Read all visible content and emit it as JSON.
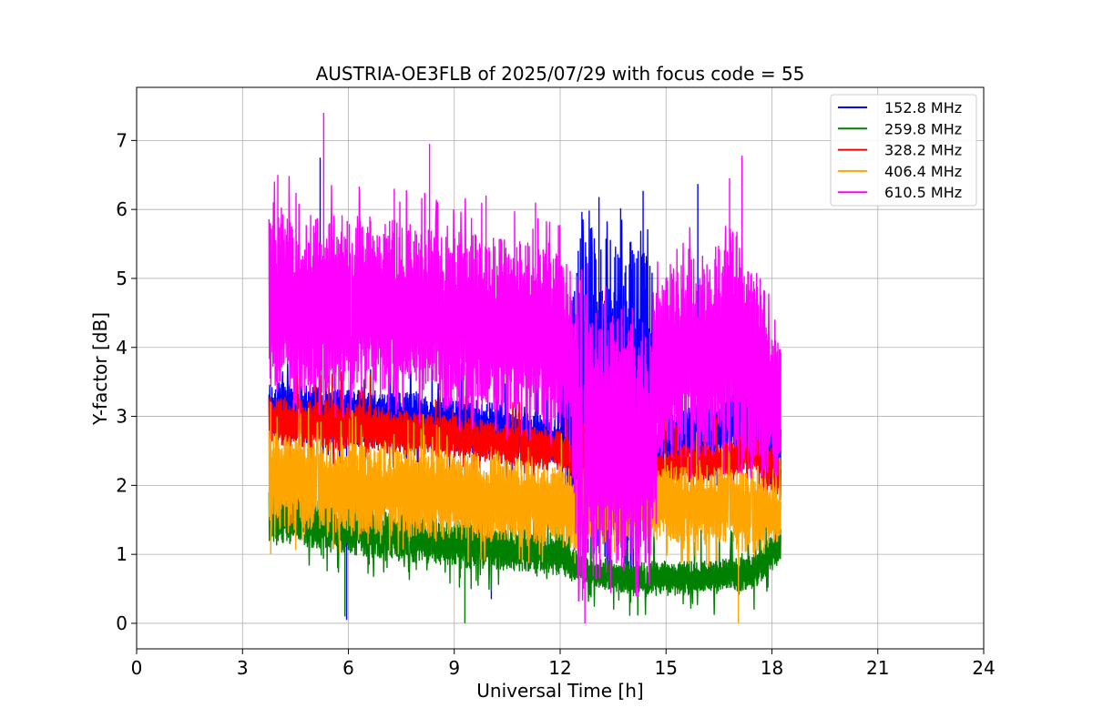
{
  "chart_data": {
    "type": "line",
    "title": "AUSTRIA-OE3FLB of 2025/07/29 with focus code = 55",
    "xlabel": "Universal Time [h]",
    "ylabel": "Y-factor [dB]",
    "xlim": [
      0,
      24
    ],
    "ylim": [
      -0.37,
      7.77
    ],
    "xticks": [
      0,
      3,
      6,
      9,
      12,
      15,
      18,
      21,
      24
    ],
    "yticks": [
      0,
      1,
      2,
      3,
      4,
      5,
      6,
      7
    ],
    "grid": true,
    "legend_position": "top-right",
    "time_range_h": [
      3.75,
      18.25
    ],
    "series": [
      {
        "name": "152.8 MHz",
        "color": "#0000ff",
        "bands": [
          {
            "x": 3.75,
            "lo": 2.7,
            "hi": 3.5
          },
          {
            "x": 6.0,
            "lo": 2.6,
            "hi": 3.4
          },
          {
            "x": 9.0,
            "lo": 2.5,
            "hi": 3.3
          },
          {
            "x": 12.0,
            "lo": 2.3,
            "hi": 3.0
          },
          {
            "x": 12.4,
            "lo": 1.0,
            "hi": 5.6
          },
          {
            "x": 14.6,
            "lo": 1.0,
            "hi": 5.6
          },
          {
            "x": 14.7,
            "lo": 2.0,
            "hi": 3.0
          },
          {
            "x": 16.5,
            "lo": 2.3,
            "hi": 3.3
          },
          {
            "x": 17.5,
            "lo": 2.5,
            "hi": 3.6
          },
          {
            "x": 18.25,
            "lo": 2.0,
            "hi": 3.0
          }
        ],
        "spikes": [
          {
            "x": 5.2,
            "y": 6.75
          },
          {
            "x": 13.1,
            "y": 6.18
          },
          {
            "x": 14.35,
            "y": 6.27
          },
          {
            "x": 15.9,
            "y": 6.37
          },
          {
            "x": 5.95,
            "y": 0.05
          },
          {
            "x": 10.05,
            "y": 0.35
          }
        ]
      },
      {
        "name": "259.8 MHz",
        "color": "#008000",
        "bands": [
          {
            "x": 3.75,
            "lo": 1.2,
            "hi": 1.9
          },
          {
            "x": 6.0,
            "lo": 1.0,
            "hi": 1.7
          },
          {
            "x": 9.0,
            "lo": 0.8,
            "hi": 1.5
          },
          {
            "x": 12.0,
            "lo": 0.7,
            "hi": 1.3
          },
          {
            "x": 12.5,
            "lo": 0.6,
            "hi": 1.0
          },
          {
            "x": 14.0,
            "lo": 0.4,
            "hi": 0.9
          },
          {
            "x": 16.0,
            "lo": 0.4,
            "hi": 0.9
          },
          {
            "x": 17.5,
            "lo": 0.5,
            "hi": 1.0
          },
          {
            "x": 18.25,
            "lo": 0.9,
            "hi": 1.4
          }
        ],
        "spikes": [
          {
            "x": 5.9,
            "y": 0.1
          },
          {
            "x": 9.3,
            "y": 0.0
          },
          {
            "x": 14.0,
            "y": 0.3
          }
        ]
      },
      {
        "name": "328.2 MHz",
        "color": "#ff0000",
        "bands": [
          {
            "x": 3.75,
            "lo": 2.6,
            "hi": 3.3
          },
          {
            "x": 6.0,
            "lo": 2.5,
            "hi": 3.2
          },
          {
            "x": 9.0,
            "lo": 2.4,
            "hi": 3.0
          },
          {
            "x": 12.0,
            "lo": 2.2,
            "hi": 2.8
          },
          {
            "x": 12.4,
            "lo": 2.1,
            "hi": 2.6
          },
          {
            "x": 14.7,
            "lo": 2.0,
            "hi": 2.5
          },
          {
            "x": 16.5,
            "lo": 2.1,
            "hi": 2.6
          },
          {
            "x": 17.5,
            "lo": 2.2,
            "hi": 2.8
          },
          {
            "x": 18.25,
            "lo": 1.8,
            "hi": 2.4
          }
        ],
        "spikes": []
      },
      {
        "name": "406.4 MHz",
        "color": "#ffa500",
        "bands": [
          {
            "x": 3.75,
            "lo": 1.4,
            "hi": 2.8
          },
          {
            "x": 6.0,
            "lo": 1.3,
            "hi": 2.6
          },
          {
            "x": 9.0,
            "lo": 1.2,
            "hi": 2.5
          },
          {
            "x": 12.0,
            "lo": 1.1,
            "hi": 2.3
          },
          {
            "x": 12.45,
            "lo": 1.1,
            "hi": 2.3
          },
          {
            "x": 14.65,
            "lo": 1.2,
            "hi": 2.3
          },
          {
            "x": 16.5,
            "lo": 1.1,
            "hi": 2.3
          },
          {
            "x": 17.5,
            "lo": 1.0,
            "hi": 2.2
          },
          {
            "x": 18.25,
            "lo": 1.2,
            "hi": 1.9
          }
        ],
        "spikes": [
          {
            "x": 3.8,
            "y": 1.0
          },
          {
            "x": 17.05,
            "y": 0.0
          }
        ]
      },
      {
        "name": "610.5 MHz",
        "color": "#ff00ff",
        "bands": [
          {
            "x": 3.75,
            "lo": 3.4,
            "hi": 6.0
          },
          {
            "x": 5.0,
            "lo": 3.3,
            "hi": 6.0
          },
          {
            "x": 8.0,
            "lo": 3.2,
            "hi": 5.8
          },
          {
            "x": 10.0,
            "lo": 3.0,
            "hi": 5.6
          },
          {
            "x": 11.5,
            "lo": 2.9,
            "hi": 5.5
          },
          {
            "x": 12.3,
            "lo": 2.6,
            "hi": 5.2
          },
          {
            "x": 12.5,
            "lo": 0.6,
            "hi": 4.8
          },
          {
            "x": 14.6,
            "lo": 0.7,
            "hi": 4.5
          },
          {
            "x": 14.8,
            "lo": 2.4,
            "hi": 5.0
          },
          {
            "x": 16.5,
            "lo": 2.4,
            "hi": 5.5
          },
          {
            "x": 17.5,
            "lo": 2.2,
            "hi": 5.2
          },
          {
            "x": 18.25,
            "lo": 2.0,
            "hi": 4.3
          }
        ],
        "spikes": [
          {
            "x": 5.3,
            "y": 7.4
          },
          {
            "x": 8.3,
            "y": 6.95
          },
          {
            "x": 4.0,
            "y": 6.5
          },
          {
            "x": 17.15,
            "y": 6.78
          },
          {
            "x": 16.8,
            "y": 6.45
          },
          {
            "x": 7.3,
            "y": 6.3
          },
          {
            "x": 12.7,
            "y": 0.0
          },
          {
            "x": 14.2,
            "y": 0.4
          },
          {
            "x": 9.9,
            "y": 6.2
          },
          {
            "x": 11.3,
            "y": 6.1
          }
        ]
      }
    ]
  }
}
